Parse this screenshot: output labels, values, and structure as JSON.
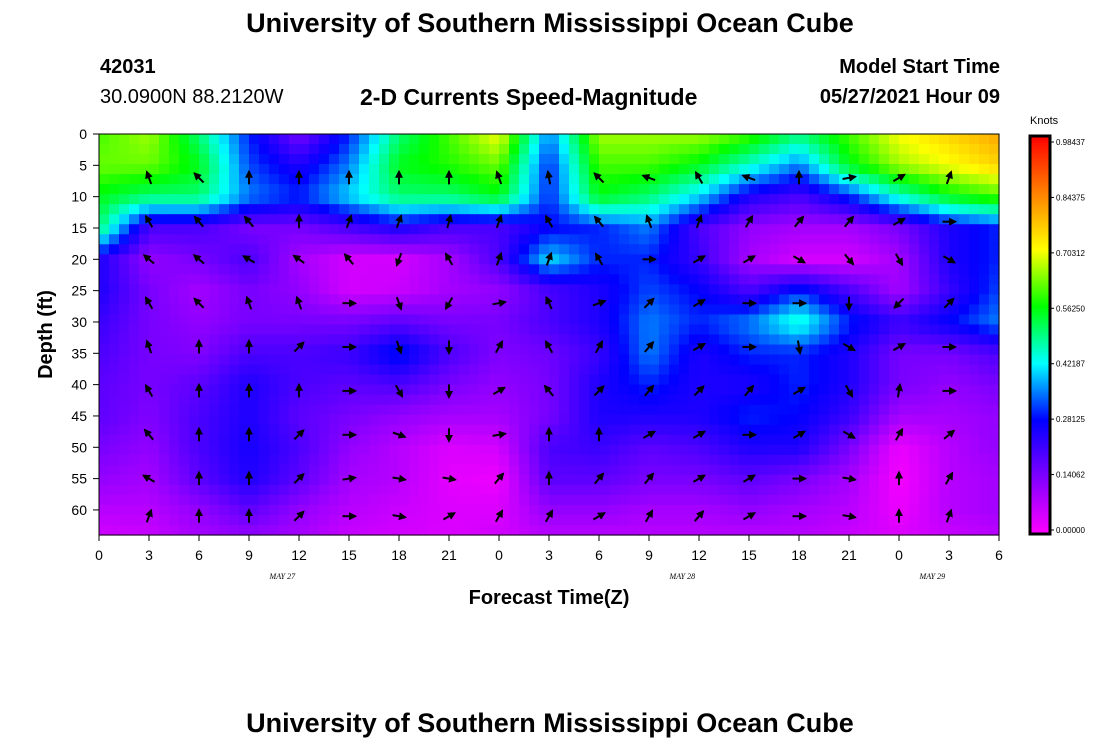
{
  "header": {
    "title": "University of Southern Mississippi Ocean Cube",
    "station_id": "42031",
    "station_coords": "30.0900N  88.2120W",
    "model_start_label": "Model Start Time",
    "model_start_value": "05/27/2021 Hour 09"
  },
  "footer": {
    "title": "University of Southern Mississippi Ocean Cube"
  },
  "chart_data": {
    "type": "heatmap",
    "title": "2-D Currents Speed-Magnitude",
    "xlabel": "Forecast Time(Z)",
    "ylabel": "Depth (ft)",
    "x_tick_labels": [
      "0",
      "3",
      "6",
      "9",
      "12",
      "15",
      "18",
      "21",
      "0",
      "3",
      "6",
      "9",
      "12",
      "15",
      "18",
      "21",
      "0",
      "3",
      "6"
    ],
    "x_range_hours": [
      0,
      54
    ],
    "date_labels": [
      {
        "label": "MAY 27",
        "hour": 11
      },
      {
        "label": "MAY 28",
        "hour": 35
      },
      {
        "label": "MAY 29",
        "hour": 50
      }
    ],
    "y_ticks": [
      0,
      5,
      10,
      15,
      20,
      25,
      30,
      35,
      40,
      45,
      50,
      55,
      60
    ],
    "y_range": [
      0,
      64
    ],
    "y_inverted": true,
    "colorbar": {
      "title": "Knots",
      "tick_labels": [
        "0.98437",
        "0.84375",
        "0.70312",
        "0.56250",
        "0.42187",
        "0.28125",
        "0.14062",
        "0.00000"
      ],
      "min": 0,
      "max": 0.98437,
      "colors": [
        "#ff00ff",
        "#8000ff",
        "#0000ff",
        "#00ffff",
        "#00ff00",
        "#ffff00",
        "#ff8000",
        "#ff0000"
      ]
    },
    "speed_grid": {
      "x_hours": [
        0,
        3,
        6,
        9,
        12,
        15,
        18,
        21,
        24,
        27,
        30,
        33,
        36,
        39,
        42,
        45,
        48,
        51,
        54
      ],
      "depths": [
        0,
        5,
        10,
        15,
        20,
        25,
        30,
        35,
        40,
        45,
        50,
        55,
        60,
        64
      ],
      "values": [
        [
          0.6,
          0.65,
          0.5,
          0.3,
          0.15,
          0.3,
          0.5,
          0.6,
          0.7,
          0.35,
          0.65,
          0.65,
          0.65,
          0.6,
          0.5,
          0.6,
          0.7,
          0.75,
          0.8
        ],
        [
          0.62,
          0.62,
          0.55,
          0.32,
          0.25,
          0.35,
          0.55,
          0.58,
          0.62,
          0.3,
          0.6,
          0.6,
          0.55,
          0.45,
          0.35,
          0.55,
          0.65,
          0.7,
          0.75
        ],
        [
          0.55,
          0.5,
          0.5,
          0.35,
          0.3,
          0.4,
          0.5,
          0.5,
          0.55,
          0.3,
          0.55,
          0.5,
          0.4,
          0.25,
          0.2,
          0.3,
          0.45,
          0.55,
          0.6
        ],
        [
          0.5,
          0.2,
          0.2,
          0.15,
          0.15,
          0.2,
          0.25,
          0.2,
          0.2,
          0.28,
          0.3,
          0.35,
          0.2,
          0.12,
          0.1,
          0.1,
          0.15,
          0.25,
          0.3
        ],
        [
          0.25,
          0.12,
          0.15,
          0.2,
          0.1,
          0.05,
          0.05,
          0.1,
          0.2,
          0.4,
          0.3,
          0.3,
          0.22,
          0.1,
          0.05,
          0.05,
          0.1,
          0.25,
          0.3
        ],
        [
          0.25,
          0.15,
          0.1,
          0.15,
          0.12,
          0.05,
          0.06,
          0.1,
          0.12,
          0.2,
          0.25,
          0.32,
          0.28,
          0.2,
          0.3,
          0.2,
          0.1,
          0.22,
          0.32
        ],
        [
          0.22,
          0.15,
          0.12,
          0.15,
          0.15,
          0.15,
          0.18,
          0.15,
          0.15,
          0.2,
          0.25,
          0.35,
          0.3,
          0.35,
          0.45,
          0.3,
          0.22,
          0.28,
          0.35
        ],
        [
          0.2,
          0.15,
          0.14,
          0.2,
          0.2,
          0.22,
          0.3,
          0.2,
          0.14,
          0.16,
          0.22,
          0.35,
          0.25,
          0.3,
          0.3,
          0.25,
          0.15,
          0.15,
          0.2
        ],
        [
          0.18,
          0.15,
          0.18,
          0.25,
          0.2,
          0.18,
          0.2,
          0.15,
          0.12,
          0.15,
          0.25,
          0.3,
          0.25,
          0.25,
          0.3,
          0.25,
          0.15,
          0.12,
          0.15
        ],
        [
          0.18,
          0.14,
          0.2,
          0.25,
          0.18,
          0.15,
          0.12,
          0.1,
          0.1,
          0.15,
          0.25,
          0.25,
          0.25,
          0.3,
          0.28,
          0.22,
          0.1,
          0.1,
          0.12
        ],
        [
          0.15,
          0.12,
          0.2,
          0.26,
          0.2,
          0.12,
          0.08,
          0.04,
          0.05,
          0.2,
          0.22,
          0.18,
          0.2,
          0.25,
          0.25,
          0.15,
          0.02,
          0.08,
          0.12
        ],
        [
          0.12,
          0.1,
          0.18,
          0.25,
          0.18,
          0.1,
          0.08,
          0.03,
          0.02,
          0.18,
          0.18,
          0.15,
          0.15,
          0.18,
          0.15,
          0.1,
          0.01,
          0.08,
          0.1
        ],
        [
          0.08,
          0.08,
          0.12,
          0.18,
          0.12,
          0.08,
          0.06,
          0.04,
          0.04,
          0.12,
          0.12,
          0.1,
          0.1,
          0.12,
          0.1,
          0.08,
          0.02,
          0.08,
          0.1
        ],
        [
          0.05,
          0.06,
          0.1,
          0.12,
          0.1,
          0.06,
          0.05,
          0.04,
          0.05,
          0.08,
          0.08,
          0.08,
          0.08,
          0.08,
          0.08,
          0.06,
          0.04,
          0.06,
          0.08
        ]
      ]
    },
    "direction_vectors": {
      "x_hours": [
        3,
        6,
        9,
        12,
        15,
        18,
        21,
        24,
        27,
        30,
        33,
        36,
        39,
        42,
        45,
        48,
        51
      ],
      "depths": [
        7,
        14,
        20,
        27,
        34,
        41,
        48,
        55,
        61
      ],
      "angles_deg": [
        [
          340,
          315,
          360,
          0,
          0,
          0,
          0,
          340,
          350,
          315,
          290,
          330,
          290,
          0,
          80,
          60,
          20
        ],
        [
          330,
          320,
          320,
          0,
          20,
          20,
          15,
          20,
          330,
          320,
          340,
          20,
          30,
          40,
          40,
          60,
          90
        ],
        [
          310,
          310,
          300,
          305,
          320,
          200,
          330,
          20,
          20,
          330,
          90,
          60,
          60,
          120,
          140,
          150,
          120
        ],
        [
          330,
          315,
          340,
          340,
          90,
          160,
          210,
          80,
          335,
          70,
          45,
          60,
          90,
          90,
          180,
          225,
          45
        ],
        [
          340,
          0,
          0,
          45,
          90,
          160,
          180,
          30,
          330,
          30,
          40,
          60,
          90,
          170,
          120,
          60,
          90
        ],
        [
          330,
          0,
          0,
          0,
          90,
          150,
          180,
          60,
          320,
          45,
          40,
          45,
          40,
          60,
          150,
          10,
          90
        ],
        [
          320,
          0,
          0,
          45,
          90,
          110,
          180,
          80,
          0,
          0,
          60,
          60,
          90,
          60,
          120,
          30,
          50
        ],
        [
          300,
          0,
          0,
          45,
          80,
          100,
          100,
          40,
          0,
          40,
          40,
          60,
          60,
          90,
          100,
          0,
          30
        ],
        [
          20,
          0,
          0,
          45,
          90,
          100,
          60,
          30,
          30,
          60,
          30,
          40,
          60,
          90,
          100,
          0,
          20
        ]
      ]
    }
  }
}
